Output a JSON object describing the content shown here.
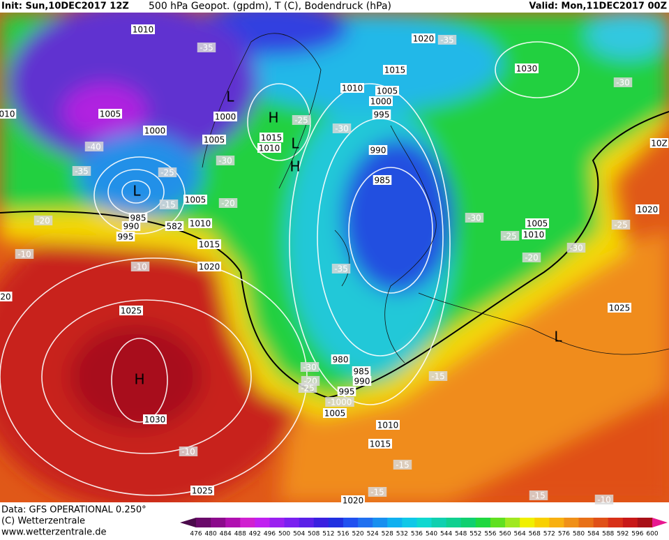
{
  "header": {
    "init": "Init: Sun,10DEC2017 12Z",
    "title": "500 hPa Geopot. (gpdm), T (C), Bodendruck (hPa)",
    "valid": "Valid: Mon,11DEC2017 00Z"
  },
  "footer": {
    "data": "Data: GFS OPERATIONAL 0.250°",
    "copyright": "(C) Wetterzentrale",
    "url": "www.wetterzentrale.de"
  },
  "colorbar": {
    "labels": [
      476,
      480,
      484,
      488,
      492,
      496,
      500,
      504,
      508,
      512,
      516,
      520,
      524,
      528,
      532,
      536,
      540,
      544,
      548,
      552,
      556,
      560,
      564,
      568,
      572,
      576,
      580,
      584,
      588,
      592,
      596,
      600
    ],
    "colors": [
      "#4b0a4b",
      "#6a0a6a",
      "#8c0a8c",
      "#b010b0",
      "#d020d0",
      "#c020f0",
      "#9a20f0",
      "#7a20f0",
      "#5a20e8",
      "#3a20e0",
      "#2030e0",
      "#2050f0",
      "#2070f0",
      "#1890f0",
      "#10b0f0",
      "#10c8e8",
      "#10d8d0",
      "#10d0b0",
      "#10d090",
      "#10d070",
      "#20d840",
      "#60e020",
      "#a0e820",
      "#f0f000",
      "#f8d000",
      "#f8b010",
      "#f09018",
      "#e87018",
      "#e05018",
      "#d83018",
      "#c81818",
      "#a81018",
      "#e81890"
    ]
  },
  "map_labels": [
    "1010",
    "1020",
    "-35",
    "-35",
    "1015",
    "1030",
    "1010",
    "1005",
    "L",
    "1000",
    "-30",
    "1005",
    "1000",
    "H",
    "995",
    "010",
    "-25",
    "1000",
    "-30",
    "1015",
    "1010",
    "1005",
    "L",
    "-40",
    "990",
    "10Z",
    "-30",
    "H",
    "-35",
    "-25",
    "985",
    "L",
    "1005",
    "-20",
    "-15",
    "1020",
    "985",
    "-20",
    "1010",
    "1005",
    "-30",
    "990",
    "582",
    "-25",
    "1010",
    "995",
    "-25",
    "1015",
    "-10",
    "-30",
    "-20",
    "-10",
    "1020",
    "-35",
    "20",
    "1025",
    "1025",
    "L",
    "980",
    "-30",
    "985",
    "-20",
    "-15",
    "990",
    "-25",
    "995",
    "-1000",
    "1005",
    "H",
    "1030",
    "1010",
    "1015",
    "-15",
    "-10",
    "1025",
    "-15",
    "-15",
    "-10",
    "1020"
  ]
}
